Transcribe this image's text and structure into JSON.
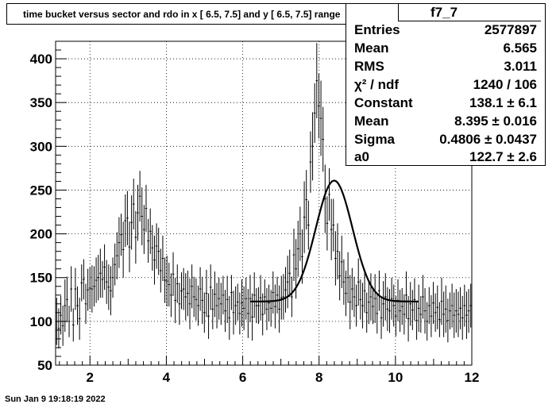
{
  "title": "time bucket versus sector and rdo in x [  6.5,  7.5] and y [  6.5,  7.5] range",
  "stats": {
    "name": "f7_7",
    "rows": [
      {
        "label": "Entries",
        "value": "2577897"
      },
      {
        "label": "Mean",
        "value": "6.565"
      },
      {
        "label": "RMS",
        "value": "3.011"
      },
      {
        "label": "χ² / ndf",
        "value": "1240 / 106"
      },
      {
        "label": "Constant",
        "value": "138.1 ± 6.1"
      },
      {
        "label": "Mean",
        "value": "8.395 ± 0.016"
      },
      {
        "label": "Sigma",
        "value": "0.4806 ± 0.0437"
      },
      {
        "label": "a0",
        "value": "122.7 ± 2.6"
      }
    ]
  },
  "timestamp": "Sun Jan  9 19:18:19 2022",
  "chart_data": {
    "type": "line",
    "xlim": [
      1.1,
      12.0
    ],
    "ylim": [
      50,
      420
    ],
    "grid": true,
    "x_ticks": [
      "2",
      "4",
      "6",
      "8",
      "10",
      "12"
    ],
    "y_ticks": [
      "50",
      "100",
      "150",
      "200",
      "250",
      "300",
      "350",
      "400"
    ],
    "histogram": {
      "bins": 200,
      "values": [
        100,
        92,
        107,
        95,
        118,
        125,
        100,
        137,
        96,
        137,
        118,
        103,
        144,
        148,
        120,
        136,
        138,
        137,
        140,
        147,
        150,
        155,
        148,
        162,
        145,
        139,
        135,
        150,
        165,
        175,
        190,
        199,
        182,
        215,
        218,
        185,
        213,
        234,
        196,
        224,
        243,
        220,
        205,
        229,
        192,
        203,
        184,
        170,
        186,
        180,
        158,
        172,
        147,
        146,
        142,
        130,
        154,
        124,
        143,
        120,
        135,
        137,
        128,
        132,
        120,
        140,
        128,
        125,
        118,
        137,
        124,
        110,
        132,
        106,
        139,
        114,
        131,
        118,
        126,
        120,
        130,
        112,
        125,
        104,
        133,
        110,
        118,
        122,
        109,
        121,
        115,
        126,
        109,
        126,
        105,
        130,
        118,
        118,
        127,
        108,
        128,
        114,
        121,
        115,
        133,
        117,
        130,
        114,
        127,
        128,
        136,
        145,
        155,
        128,
        176,
        160,
        183,
        200,
        174,
        219,
        239,
        210,
        282,
        300,
        338,
        375,
        346,
        332,
        308,
        240,
        212,
        245,
        205,
        210,
        172,
        180,
        152,
        168,
        145,
        132,
        150,
        122,
        137,
        128,
        118,
        145,
        125,
        118,
        135,
        110,
        122,
        128,
        117,
        126,
        109,
        135,
        104,
        120,
        128,
        114,
        112,
        126,
        118,
        106,
        124,
        112,
        117,
        108,
        130,
        103,
        120,
        113,
        125,
        101,
        115,
        108,
        128,
        112,
        100,
        118,
        106,
        121,
        110,
        116,
        102,
        123,
        108,
        114,
        101,
        112,
        118,
        107,
        112,
        108,
        115,
        104,
        118,
        107,
        112,
        118
      ],
      "errors": [
        27,
        23,
        22,
        23,
        30,
        26,
        18,
        26,
        19,
        24,
        22,
        24,
        21,
        23,
        23,
        24,
        24,
        27,
        23,
        26,
        26,
        28,
        21,
        26,
        25,
        26,
        28,
        23,
        24,
        27,
        29,
        24,
        32,
        30,
        31,
        29,
        31,
        29,
        30,
        32,
        29,
        33,
        28,
        27,
        25,
        26,
        26,
        28,
        26,
        27,
        25,
        26,
        26,
        29,
        25,
        25,
        25,
        26,
        22,
        24,
        21,
        24,
        27,
        26,
        29,
        25,
        23,
        24,
        23,
        25,
        27,
        23,
        27,
        26,
        26,
        23,
        26,
        26,
        24,
        24,
        22,
        24,
        27,
        25,
        20,
        25,
        22,
        21,
        24,
        27,
        25,
        24,
        28,
        27,
        27,
        26,
        20,
        21,
        26,
        24,
        20,
        24,
        21,
        21,
        24,
        25,
        21,
        27,
        25,
        26,
        26,
        30,
        27,
        23,
        30,
        34,
        32,
        31,
        31,
        41,
        34,
        28,
        35,
        39,
        34,
        43,
        37,
        43,
        37,
        39,
        31,
        30,
        35,
        30,
        31,
        32,
        28,
        30,
        26,
        26,
        29,
        31,
        24,
        23,
        24,
        27,
        23,
        26,
        25,
        23,
        25,
        27,
        20,
        28,
        23,
        23,
        24,
        26,
        27,
        25,
        25,
        24,
        24,
        23,
        24,
        24,
        21,
        23,
        27,
        26,
        25,
        23,
        24,
        22,
        27,
        21,
        25,
        26,
        22,
        21,
        24,
        24,
        22,
        25,
        20,
        27,
        26,
        27,
        25,
        21,
        25,
        26,
        25,
        26,
        24,
        25,
        24,
        27,
        25,
        25
      ]
    },
    "fit": {
      "function": "gaus + pol0",
      "constant": 138.1,
      "mean": 8.395,
      "sigma": 0.4806,
      "a0": 122.7,
      "range": [
        6.2,
        10.6
      ]
    }
  }
}
